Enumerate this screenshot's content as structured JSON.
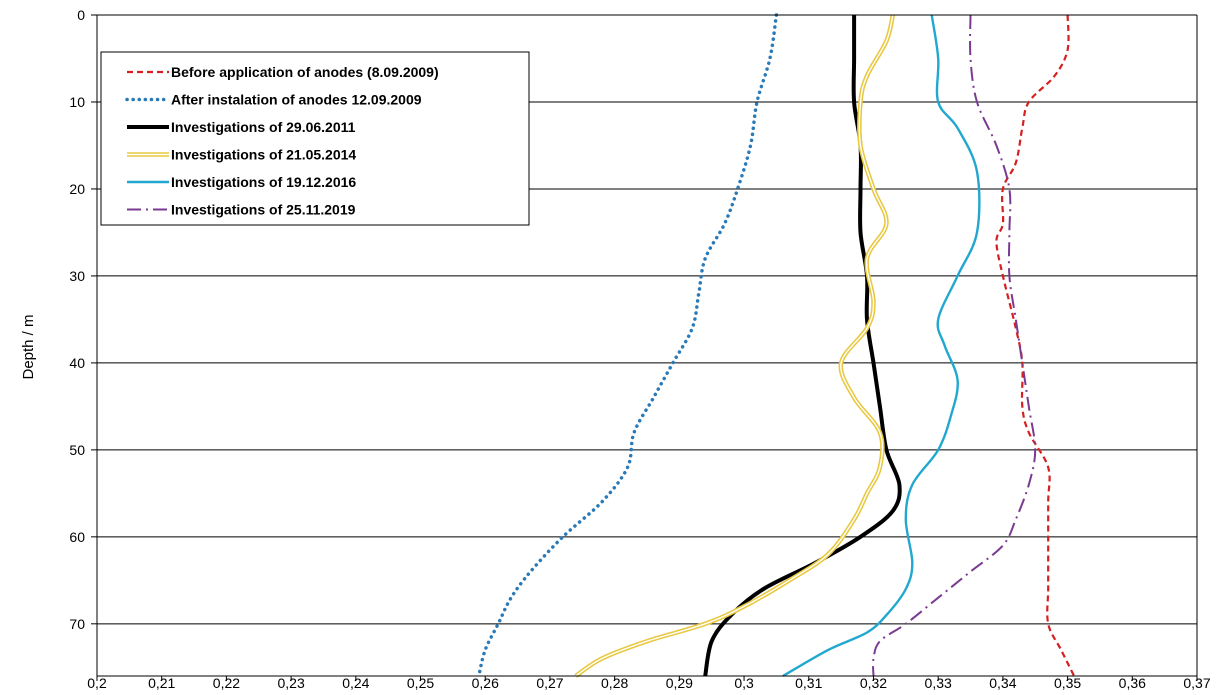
{
  "chart_data": {
    "type": "line",
    "title": "",
    "xlabel": "",
    "ylabel": "Depth / m",
    "xlim": [
      0.2,
      0.37
    ],
    "ylim": [
      0,
      76
    ],
    "y_inverted": true,
    "grid": "horizontal",
    "legend_position": "top-left",
    "x_ticks": [
      "0,2",
      "0,21",
      "0,22",
      "0,23",
      "0,24",
      "0,25",
      "0,26",
      "0,27",
      "0,28",
      "0,29",
      "0,3",
      "0,31",
      "0,32",
      "0,33",
      "0,34",
      "0,35",
      "0,36",
      "0,37"
    ],
    "x_tick_values": [
      0.2,
      0.21,
      0.22,
      0.23,
      0.24,
      0.25,
      0.26,
      0.27,
      0.28,
      0.29,
      0.3,
      0.31,
      0.32,
      0.33,
      0.34,
      0.35,
      0.36,
      0.37
    ],
    "y_ticks": [
      "0",
      "10",
      "20",
      "30",
      "40",
      "50",
      "60",
      "70"
    ],
    "y_tick_values": [
      0,
      10,
      20,
      30,
      40,
      50,
      60,
      70
    ],
    "series": [
      {
        "name": "Before application of anodes (8.09.2009)",
        "color": "#d42020",
        "style": "dashed",
        "points": [
          [
            0.35,
            0
          ],
          [
            0.35,
            4
          ],
          [
            0.348,
            7
          ],
          [
            0.344,
            10
          ],
          [
            0.343,
            13
          ],
          [
            0.342,
            17
          ],
          [
            0.34,
            20
          ],
          [
            0.34,
            24
          ],
          [
            0.339,
            26
          ],
          [
            0.34,
            30
          ],
          [
            0.342,
            36
          ],
          [
            0.343,
            40
          ],
          [
            0.343,
            45
          ],
          [
            0.344,
            48
          ],
          [
            0.347,
            52
          ],
          [
            0.347,
            56
          ],
          [
            0.347,
            62
          ],
          [
            0.347,
            66
          ],
          [
            0.347,
            70
          ],
          [
            0.349,
            73
          ],
          [
            0.351,
            76
          ]
        ]
      },
      {
        "name": "After instalation of anodes 12.09.2009",
        "color": "#2a7ab8",
        "style": "dotted",
        "points": [
          [
            0.305,
            0
          ],
          [
            0.304,
            5
          ],
          [
            0.302,
            10
          ],
          [
            0.301,
            15
          ],
          [
            0.299,
            20
          ],
          [
            0.297,
            24
          ],
          [
            0.294,
            28
          ],
          [
            0.293,
            32
          ],
          [
            0.292,
            36
          ],
          [
            0.289,
            40
          ],
          [
            0.286,
            44
          ],
          [
            0.283,
            48
          ],
          [
            0.282,
            52
          ],
          [
            0.278,
            56
          ],
          [
            0.272,
            60
          ],
          [
            0.267,
            64
          ],
          [
            0.264,
            67
          ],
          [
            0.262,
            70
          ],
          [
            0.26,
            73
          ],
          [
            0.259,
            76
          ]
        ]
      },
      {
        "name": "Investigations of 29.06.2011",
        "color": "#000000",
        "style": "solid-thick",
        "points": [
          [
            0.317,
            0
          ],
          [
            0.317,
            5
          ],
          [
            0.317,
            10
          ],
          [
            0.318,
            15
          ],
          [
            0.318,
            20
          ],
          [
            0.318,
            25
          ],
          [
            0.319,
            30
          ],
          [
            0.319,
            35
          ],
          [
            0.32,
            40
          ],
          [
            0.321,
            45
          ],
          [
            0.322,
            50
          ],
          [
            0.324,
            54
          ],
          [
            0.323,
            57
          ],
          [
            0.318,
            60
          ],
          [
            0.311,
            63
          ],
          [
            0.303,
            66
          ],
          [
            0.298,
            69
          ],
          [
            0.295,
            72
          ],
          [
            0.294,
            76
          ]
        ]
      },
      {
        "name": "Investigations of 21.05.2014",
        "color": "#e8c840",
        "style": "double",
        "points": [
          [
            0.323,
            0
          ],
          [
            0.322,
            3
          ],
          [
            0.319,
            7
          ],
          [
            0.318,
            10
          ],
          [
            0.318,
            15
          ],
          [
            0.32,
            20
          ],
          [
            0.322,
            24
          ],
          [
            0.319,
            28
          ],
          [
            0.32,
            33
          ],
          [
            0.319,
            36
          ],
          [
            0.315,
            40
          ],
          [
            0.317,
            44
          ],
          [
            0.321,
            48
          ],
          [
            0.321,
            52
          ],
          [
            0.319,
            55
          ],
          [
            0.317,
            58
          ],
          [
            0.313,
            62
          ],
          [
            0.307,
            65
          ],
          [
            0.3,
            68
          ],
          [
            0.294,
            70
          ],
          [
            0.285,
            72
          ],
          [
            0.278,
            74
          ],
          [
            0.274,
            76
          ]
        ]
      },
      {
        "name": "Investigations of 19.12.2016",
        "color": "#22a8d0",
        "style": "solid",
        "points": [
          [
            0.329,
            0
          ],
          [
            0.33,
            5
          ],
          [
            0.33,
            10
          ],
          [
            0.333,
            13
          ],
          [
            0.336,
            18
          ],
          [
            0.336,
            25
          ],
          [
            0.333,
            30
          ],
          [
            0.33,
            35
          ],
          [
            0.331,
            38
          ],
          [
            0.333,
            42
          ],
          [
            0.332,
            46
          ],
          [
            0.33,
            50
          ],
          [
            0.326,
            54
          ],
          [
            0.325,
            58
          ],
          [
            0.326,
            63
          ],
          [
            0.325,
            66
          ],
          [
            0.322,
            69
          ],
          [
            0.319,
            71
          ],
          [
            0.313,
            73
          ],
          [
            0.306,
            76
          ]
        ]
      },
      {
        "name": "Investigations of 25.11.2019",
        "color": "#7a3a90",
        "style": "dash-dot",
        "points": [
          [
            0.335,
            0
          ],
          [
            0.335,
            5
          ],
          [
            0.336,
            10
          ],
          [
            0.339,
            15
          ],
          [
            0.341,
            20
          ],
          [
            0.341,
            25
          ],
          [
            0.341,
            30
          ],
          [
            0.342,
            35
          ],
          [
            0.343,
            40
          ],
          [
            0.344,
            45
          ],
          [
            0.345,
            50
          ],
          [
            0.344,
            54
          ],
          [
            0.342,
            58
          ],
          [
            0.34,
            61
          ],
          [
            0.335,
            64
          ],
          [
            0.33,
            67
          ],
          [
            0.325,
            70
          ],
          [
            0.321,
            72
          ],
          [
            0.32,
            74
          ],
          [
            0.32,
            76
          ]
        ]
      }
    ]
  }
}
